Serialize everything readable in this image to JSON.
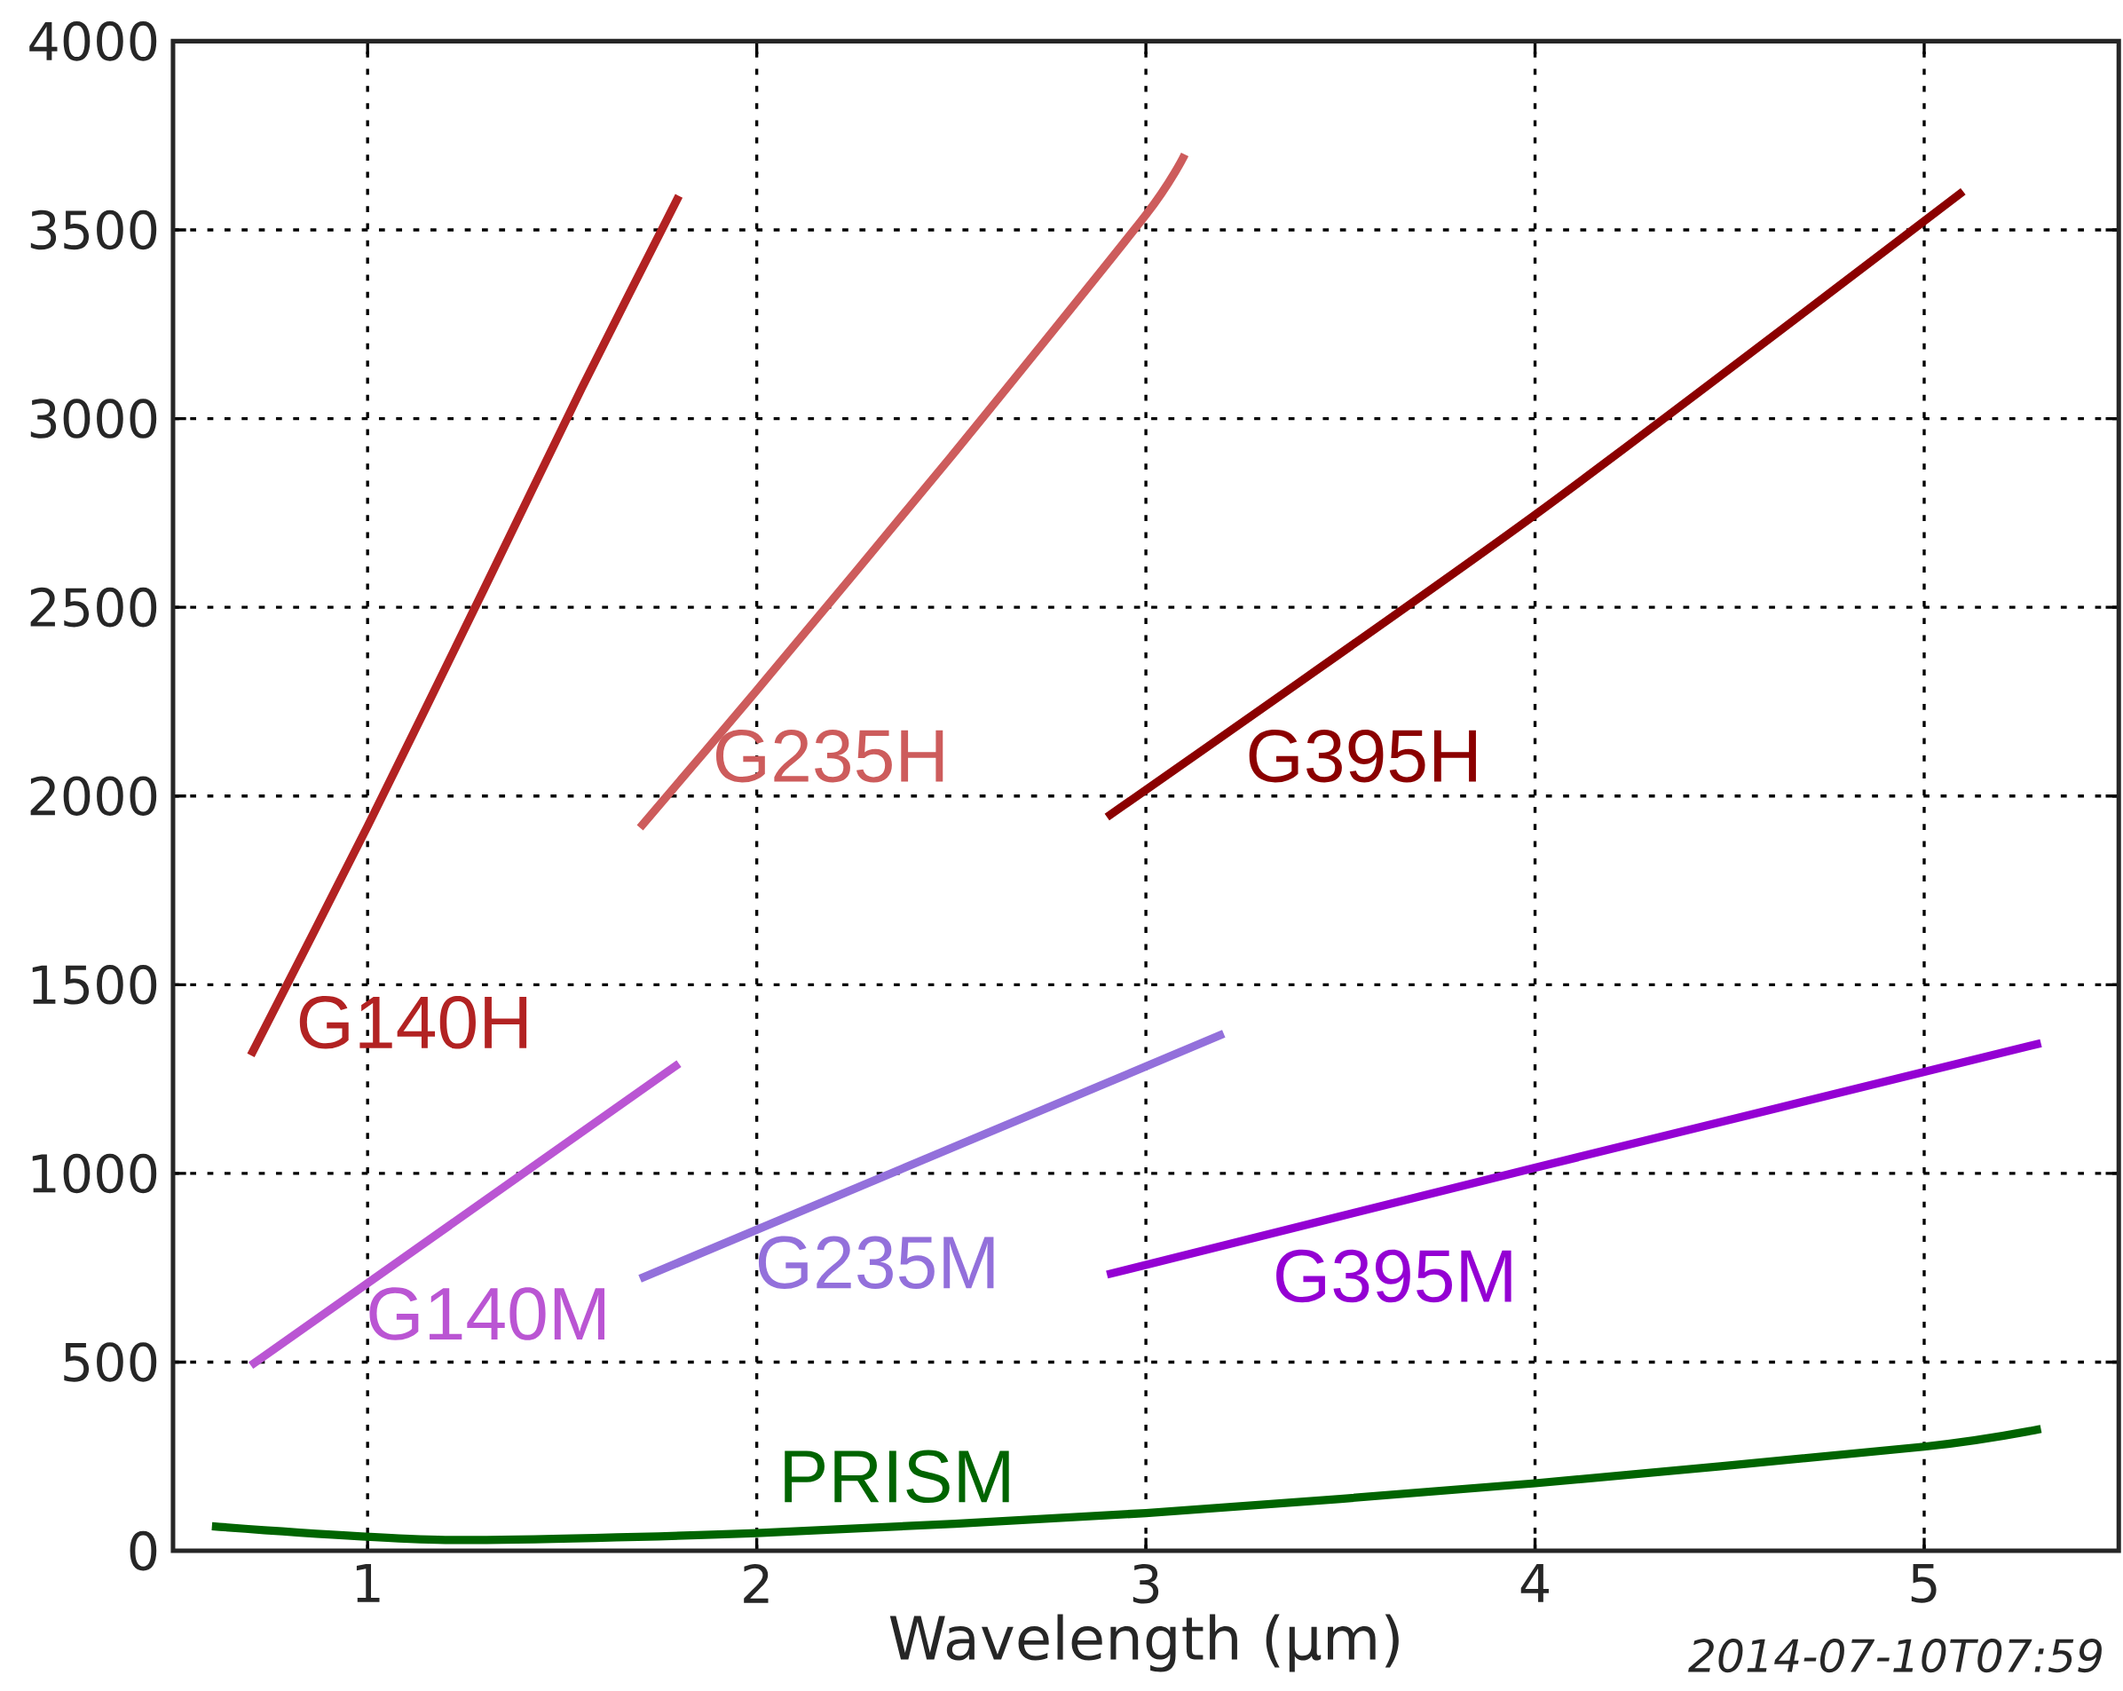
{
  "chart_data": {
    "type": "line",
    "xlabel": "Wavelength (μm)",
    "xlim": [
      0.5,
      5.5
    ],
    "ylim": [
      0,
      4000
    ],
    "xticks": [
      1,
      2,
      3,
      4,
      5
    ],
    "yticks": [
      0,
      500,
      1000,
      1500,
      2000,
      2500,
      3000,
      3500,
      4000
    ],
    "grid": true,
    "marker": "none",
    "line_style": "solid",
    "annotations": [
      "2014-07-10T07:59"
    ],
    "series": [
      {
        "name": "G140H",
        "color": "#b22222",
        "x": [
          0.7,
          1.0,
          1.3,
          1.55,
          1.8
        ],
        "values": [
          1313,
          1920,
          2550,
          3080,
          3590
        ]
      },
      {
        "name": "G235H",
        "color": "#cd5c5c",
        "x": [
          1.7,
          2.0,
          2.5,
          3.0,
          3.1
        ],
        "values": [
          1916,
          2280,
          2900,
          3540,
          3700
        ]
      },
      {
        "name": "G395H",
        "color": "#8b0000",
        "x": [
          2.9,
          4.0,
          5.1
        ],
        "values": [
          1944,
          2745,
          3602
        ]
      },
      {
        "name": "G140M",
        "color": "#ba55d3",
        "x": [
          0.7,
          1.8
        ],
        "values": [
          491,
          1291
        ]
      },
      {
        "name": "G235M",
        "color": "#9370db",
        "x": [
          1.7,
          3.2
        ],
        "values": [
          721,
          1370
        ]
      },
      {
        "name": "G395M",
        "color": "#9400d3",
        "x": [
          2.9,
          4.0,
          5.3
        ],
        "values": [
          732,
          1015,
          1345
        ]
      },
      {
        "name": "PRISM",
        "color": "#006400",
        "x": [
          0.6,
          1.2,
          2.0,
          3.0,
          4.0,
          5.0,
          5.3
        ],
        "values": [
          65,
          29,
          47,
          100,
          179,
          276,
          323
        ]
      }
    ]
  }
}
